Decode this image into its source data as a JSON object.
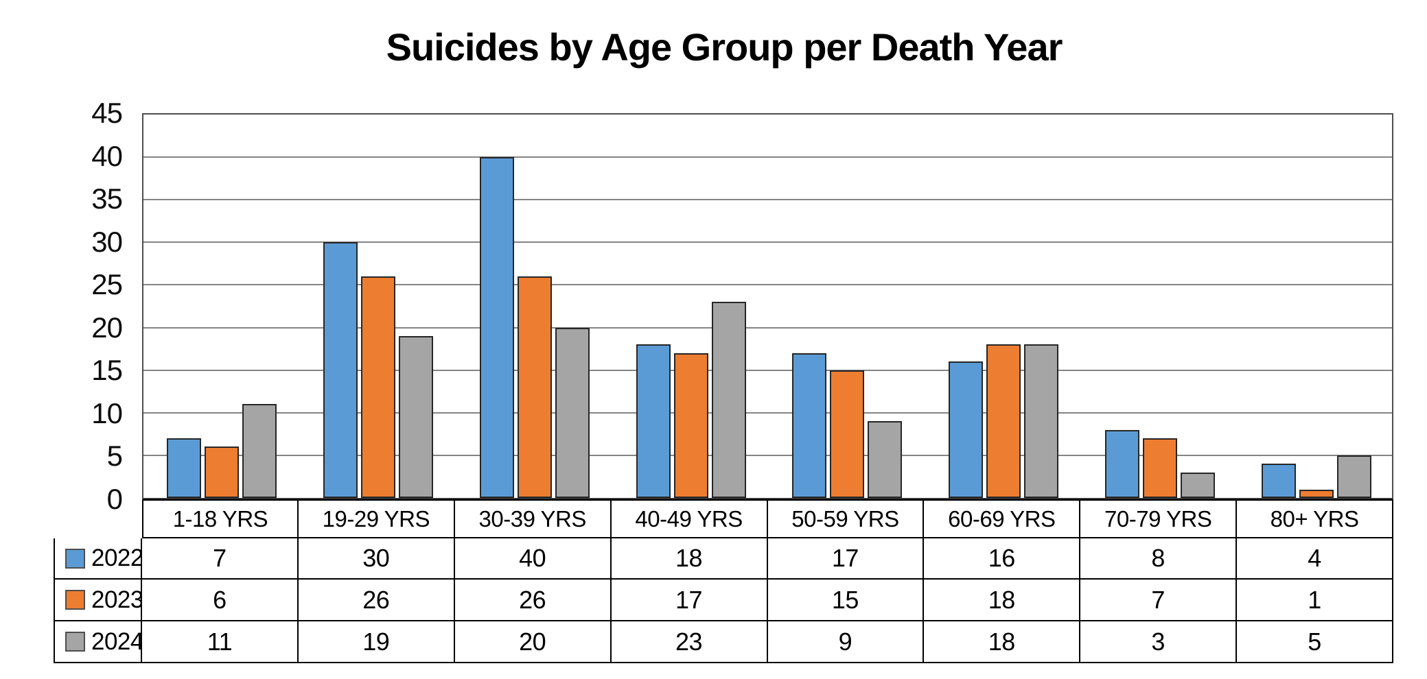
{
  "chart_data": {
    "type": "bar",
    "title": "Suicides by Age Group per Death Year",
    "categories": [
      "1-18 YRS",
      "19-29 YRS",
      "30-39 YRS",
      "40-49 YRS",
      "50-59 YRS",
      "60-69 YRS",
      "70-79 YRS",
      "80+ YRS"
    ],
    "series": [
      {
        "name": "2022",
        "color": "#5B9BD5",
        "values": [
          7,
          30,
          40,
          18,
          17,
          16,
          8,
          4
        ]
      },
      {
        "name": "2023",
        "color": "#ED7D31",
        "values": [
          6,
          26,
          26,
          17,
          15,
          18,
          7,
          1
        ]
      },
      {
        "name": "2024",
        "color": "#A5A5A5",
        "values": [
          11,
          19,
          20,
          23,
          9,
          18,
          3,
          5
        ]
      }
    ],
    "xlabel": "",
    "ylabel": "",
    "ylim": [
      0,
      45
    ],
    "ytick_step": 5,
    "yticks": [
      45,
      40,
      35,
      30,
      25,
      20,
      15,
      10,
      5,
      0
    ],
    "grid": true,
    "legend_position": "table-left-column",
    "colors": {
      "gridline": "#848484",
      "plot_border": "#4d4d4d",
      "bar_border": "#262626",
      "table_border": "#000000",
      "text": "#000000"
    }
  }
}
